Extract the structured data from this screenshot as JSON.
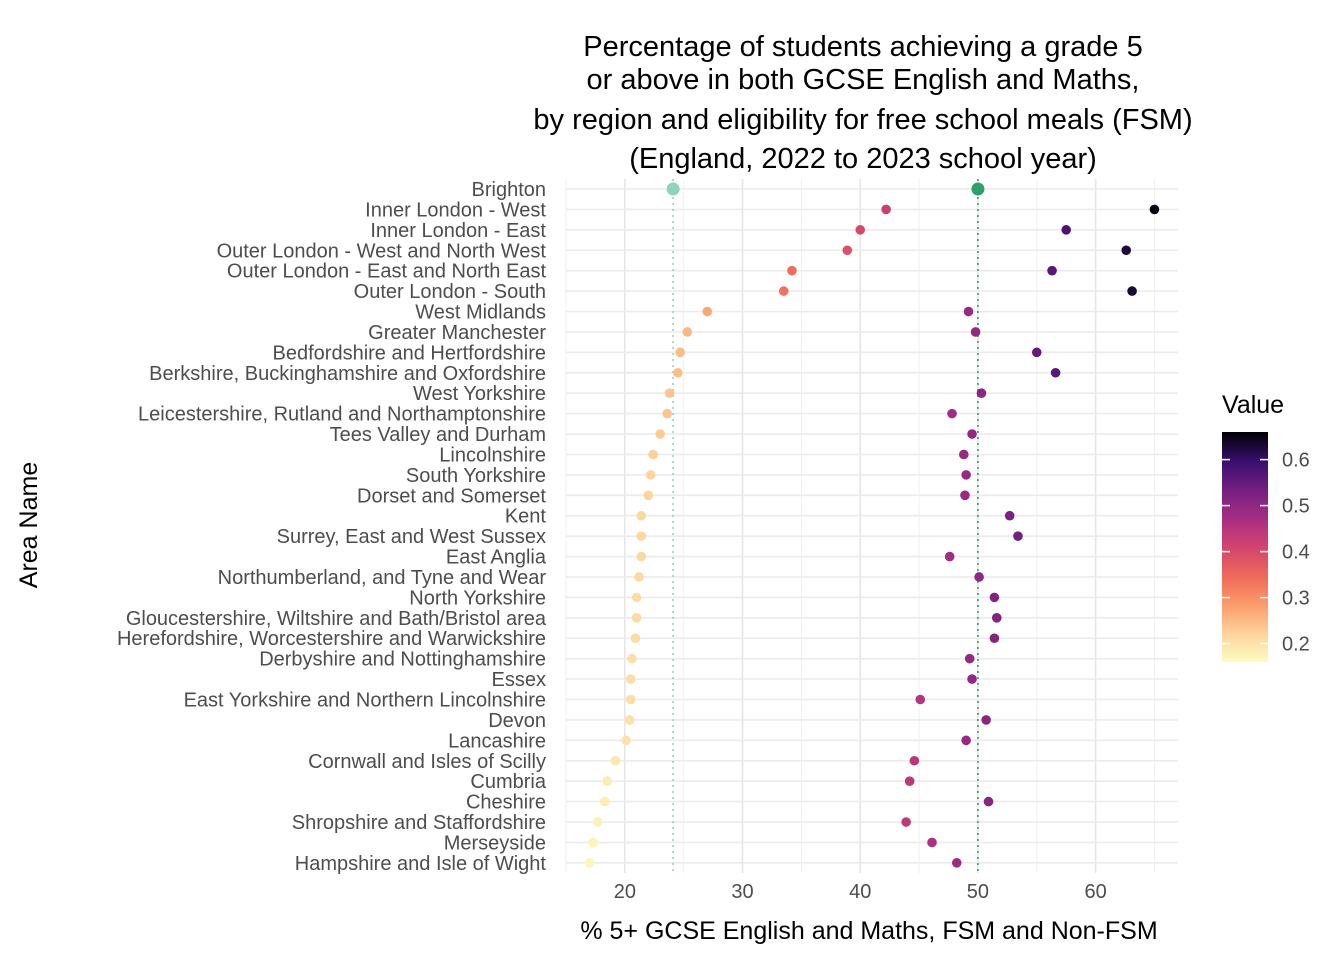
{
  "chart_data": {
    "type": "scatter",
    "title_lines": [
      "Percentage of students achieving a grade 5",
      "or above in both GCSE English and Maths,",
      "by region and eligibility for free school meals (FSM)",
      "(England, 2022 to 2023 school year)"
    ],
    "xlabel": "% 5+ GCSE English and Maths, FSM and Non-FSM",
    "ylabel": "Area Name",
    "xlim": [
      15,
      67
    ],
    "x_ticks": [
      20,
      30,
      40,
      50,
      60
    ],
    "grid": true,
    "legend": {
      "title": "Value",
      "placement": "right",
      "range": [
        0.16,
        0.66
      ],
      "ticks": [
        0.2,
        0.3,
        0.4,
        0.5,
        0.6
      ],
      "tick_labels": [
        "0.2",
        "0.3",
        "0.4",
        "0.5",
        "0.6"
      ]
    },
    "reference_lines": [
      {
        "x": 24.1,
        "color": "#8fd3bf"
      },
      {
        "x": 50.0,
        "color": "#2fa06a"
      }
    ],
    "highlight_colors": {
      "FSM": "#8fd3bf",
      "NonFSM": "#2fa06a"
    },
    "categories": [
      "Brighton",
      "Inner London - West",
      "Inner London - East",
      "Outer London - West and North West",
      "Outer London - East and North East",
      "Outer London - South",
      "West Midlands",
      "Greater Manchester",
      "Bedfordshire and Hertfordshire",
      "Berkshire, Buckinghamshire and Oxfordshire",
      "West Yorkshire",
      "Leicestershire, Rutland and Northamptonshire",
      "Tees Valley and Durham",
      "Lincolnshire",
      "South Yorkshire",
      "Dorset and Somerset",
      "Kent",
      "Surrey, East and West Sussex",
      "East Anglia",
      "Northumberland, and Tyne and Wear",
      "North Yorkshire",
      "Gloucestershire, Wiltshire and Bath/Bristol area",
      "Herefordshire, Worcestershire and Warwickshire",
      "Derbyshire and Nottinghamshire",
      "Essex",
      "East Yorkshire and Northern Lincolnshire",
      "Devon",
      "Lancashire",
      "Cornwall and Isles of Scilly",
      "Cumbria",
      "Cheshire",
      "Shropshire and Staffordshire",
      "Merseyside",
      "Hampshire and Isle of Wight"
    ],
    "series": [
      {
        "values": [
          24.1,
          42.2,
          40.0,
          38.9,
          34.2,
          33.5,
          27.0,
          25.3,
          24.7,
          24.5,
          23.8,
          23.6,
          23.0,
          22.4,
          22.2,
          22.0,
          21.4,
          21.4,
          21.4,
          21.2,
          21.0,
          21.0,
          20.9,
          20.6,
          20.5,
          20.5,
          20.4,
          20.1,
          19.2,
          18.5,
          18.3,
          17.7,
          17.3,
          17.0
        ]
      },
      {
        "values": [
          50.0,
          65.0,
          57.5,
          62.6,
          56.3,
          63.1,
          49.2,
          49.8,
          55.0,
          56.6,
          50.3,
          47.8,
          49.5,
          48.8,
          49.0,
          48.9,
          52.7,
          53.4,
          47.6,
          50.1,
          51.4,
          51.6,
          51.4,
          49.3,
          49.5,
          45.1,
          50.7,
          49.0,
          44.6,
          44.2,
          50.9,
          43.9,
          46.1,
          48.2
        ]
      }
    ]
  }
}
